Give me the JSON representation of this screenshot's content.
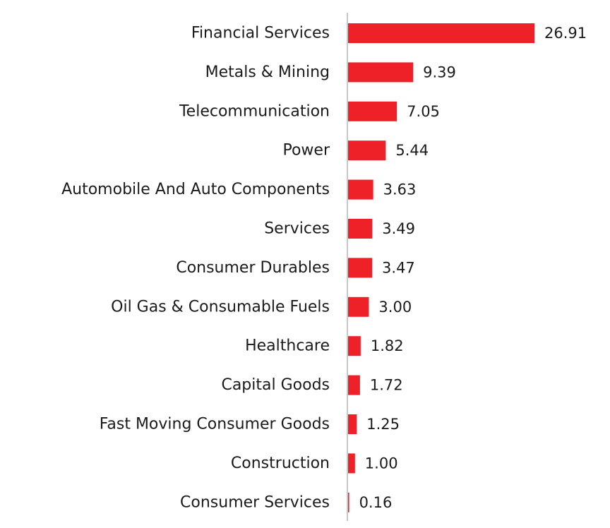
{
  "chart_data": {
    "type": "bar",
    "orientation": "horizontal",
    "title": "",
    "xlabel": "",
    "ylabel": "",
    "categories": [
      "Financial Services",
      "Metals & Mining",
      "Telecommunication",
      "Power",
      "Automobile And Auto Components",
      "Services",
      "Consumer Durables",
      "Oil Gas & Consumable Fuels",
      "Healthcare",
      "Capital Goods",
      "Fast Moving Consumer Goods",
      "Construction",
      "Consumer Services"
    ],
    "values": [
      26.91,
      9.39,
      7.05,
      5.44,
      3.63,
      3.49,
      3.47,
      3.0,
      1.82,
      1.72,
      1.25,
      1.0,
      0.16
    ],
    "value_labels": [
      "26.91",
      "9.39",
      "7.05",
      "5.44",
      "3.63",
      "3.49",
      "3.47",
      "3.00",
      "1.82",
      "1.72",
      "1.25",
      "1.00",
      "0.16"
    ],
    "xlim": [
      0,
      26.91
    ],
    "grid": false,
    "legend": "none",
    "bar_color": "#ee2028",
    "axis_color": "#c8c8c8"
  }
}
